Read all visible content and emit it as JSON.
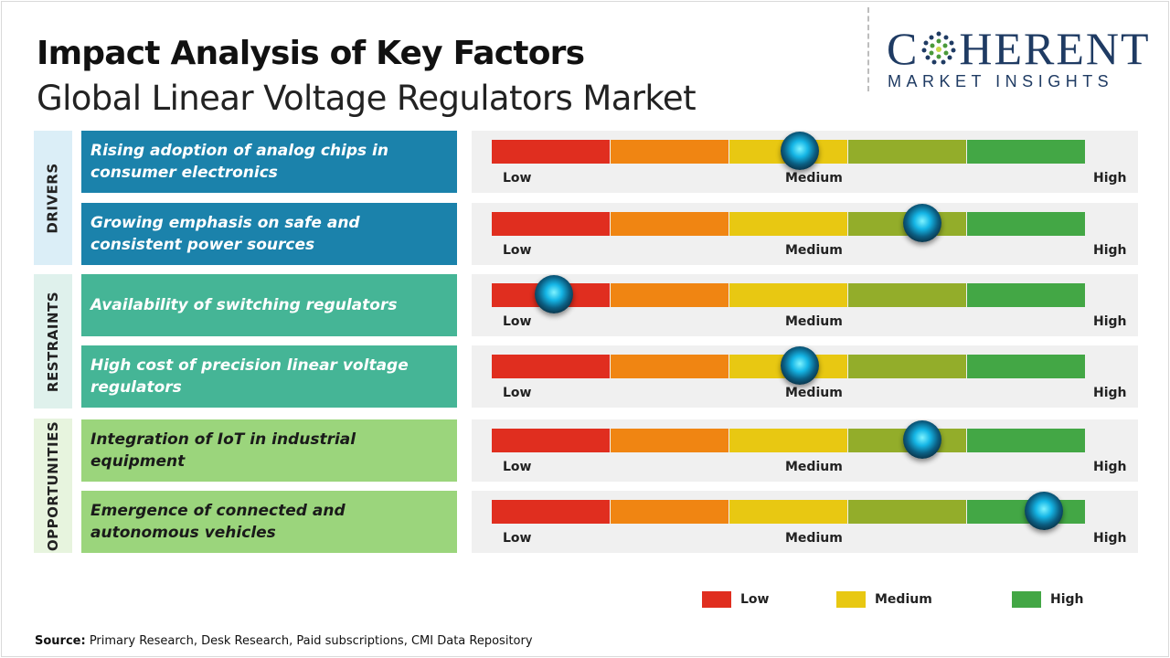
{
  "header": {
    "title": "Impact Analysis of Key Factors",
    "subtitle": "Global Linear Voltage Regulators Market"
  },
  "logo": {
    "top_left": "C",
    "top_right": "HERENT",
    "bottom": "MARKET INSIGHTS"
  },
  "categories": {
    "drivers": "DRIVERS",
    "restraints": "RESTRAINTS",
    "opportunities": "OPPORTUNITIES"
  },
  "scale": {
    "low": "Low",
    "medium": "Medium",
    "high": "High"
  },
  "factors": [
    {
      "text": "Rising adoption of analog chips in consumer electronics",
      "category": "drivers",
      "level": 0.52
    },
    {
      "text": "Growing emphasis on safe and consistent power sources",
      "category": "drivers",
      "level": 0.725
    },
    {
      "text": "Availability of switching regulators",
      "category": "restraints",
      "level": 0.105
    },
    {
      "text": "High cost of precision linear voltage regulators",
      "category": "restraints",
      "level": 0.52
    },
    {
      "text": "Integration of IoT in industrial equipment",
      "category": "opportunities",
      "level": 0.725
    },
    {
      "text": "Emergence of connected and autonomous vehicles",
      "category": "opportunities",
      "level": 0.93
    }
  ],
  "legend": [
    {
      "label": "Low",
      "color": "#e02e1f"
    },
    {
      "label": "Medium",
      "color": "#e8c812"
    },
    {
      "label": "High",
      "color": "#43a745"
    }
  ],
  "source": {
    "label": "Source:",
    "text": " Primary Research, Desk Research, Paid subscriptions, CMI Data Repository"
  }
}
